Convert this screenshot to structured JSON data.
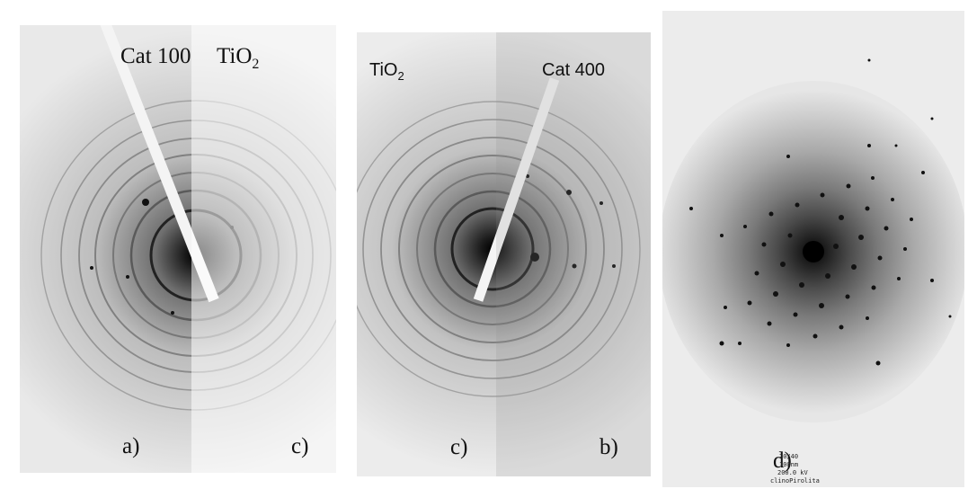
{
  "panels": {
    "left": {
      "title_left": "Cat 100",
      "title_right_base": "TiO",
      "title_right_sub": "2",
      "label_bottom_left": "a)",
      "label_bottom_right": "c)"
    },
    "middle": {
      "title_left_base": "TiO",
      "title_left_sub": "2",
      "title_right": "Cat 400",
      "label_bottom_left": "c)",
      "label_bottom_right": "b)"
    },
    "right": {
      "label": "d)",
      "caption_lines": [
        "20/40",
        "100nm",
        "200.0 kV",
        "clinoPirolita"
      ]
    }
  },
  "colors": {
    "background": "#ffffff",
    "pattern_dark": "#111111",
    "overlay_half": "#7a7a7a"
  }
}
